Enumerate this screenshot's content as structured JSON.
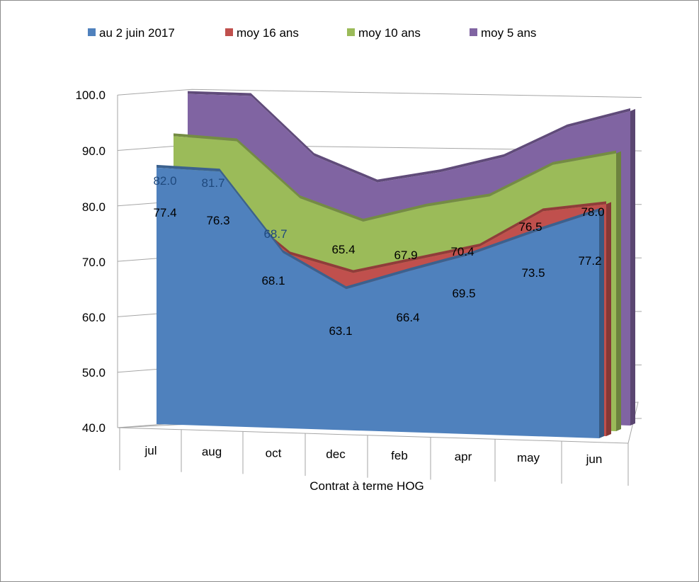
{
  "chart_data": {
    "type": "area",
    "categories": [
      "jul",
      "aug",
      "oct",
      "dec",
      "feb",
      "apr",
      "may",
      "jun"
    ],
    "xlabel": "Contrat à terme  HOG",
    "ylim": [
      40,
      100
    ],
    "yticks": [
      "40.0",
      "50.0",
      "60.0",
      "70.0",
      "80.0",
      "90.0",
      "100.0"
    ],
    "grid": true,
    "legend_position": "top",
    "series": [
      {
        "name": "au 2 juin 2017",
        "color": "#4f81bd",
        "values": [
          82.0,
          81.7,
          68.7,
          63.1,
          66.4,
          69.5,
          73.5,
          77.2
        ]
      },
      {
        "name": "moy 16 ans",
        "color": "#c0504d",
        "values": [
          77.4,
          76.3,
          68.1,
          65.4,
          67.9,
          70.4,
          76.5,
          78.0
        ]
      },
      {
        "name": "moy 10 ans",
        "color": "#9bbb59",
        "values": [
          86.0,
          85.5,
          76.5,
          73.0,
          75.8,
          77.8,
          83.3,
          85.5
        ]
      },
      {
        "name": "moy 5 ans",
        "color": "#8064a2",
        "values": [
          92.0,
          92.0,
          82.5,
          78.5,
          80.5,
          83.3,
          88.5,
          91.5
        ]
      }
    ],
    "data_labels": [
      {
        "cat": "jul",
        "text": "82.0",
        "series": "au 2 juin 2017"
      },
      {
        "cat": "jul",
        "text": "77.4",
        "series": "moy 16 ans"
      },
      {
        "cat": "aug",
        "text": "81.7",
        "series": "au 2 juin 2017"
      },
      {
        "cat": "aug",
        "text": "76.3",
        "series": "moy 16 ans"
      },
      {
        "cat": "oct",
        "text": "68.7",
        "series": "au 2 juin 2017"
      },
      {
        "cat": "oct",
        "text": "68.1",
        "series": "moy 16 ans"
      },
      {
        "cat": "dec",
        "text": "65.4",
        "series": "moy 16 ans"
      },
      {
        "cat": "dec",
        "text": "63.1",
        "series": "au 2 juin 2017"
      },
      {
        "cat": "feb",
        "text": "67.9",
        "series": "moy 16 ans"
      },
      {
        "cat": "feb",
        "text": "66.4",
        "series": "au 2 juin 2017"
      },
      {
        "cat": "apr",
        "text": "70.4",
        "series": "moy 16 ans"
      },
      {
        "cat": "apr",
        "text": "69.5",
        "series": "au 2 juin 2017"
      },
      {
        "cat": "may",
        "text": "76.5",
        "series": "moy 16 ans"
      },
      {
        "cat": "may",
        "text": "73.5",
        "series": "au 2 juin 2017"
      },
      {
        "cat": "jun",
        "text": "78.0",
        "series": "moy 16 ans"
      },
      {
        "cat": "jun",
        "text": "77.2",
        "series": "au 2 juin 2017"
      }
    ]
  }
}
